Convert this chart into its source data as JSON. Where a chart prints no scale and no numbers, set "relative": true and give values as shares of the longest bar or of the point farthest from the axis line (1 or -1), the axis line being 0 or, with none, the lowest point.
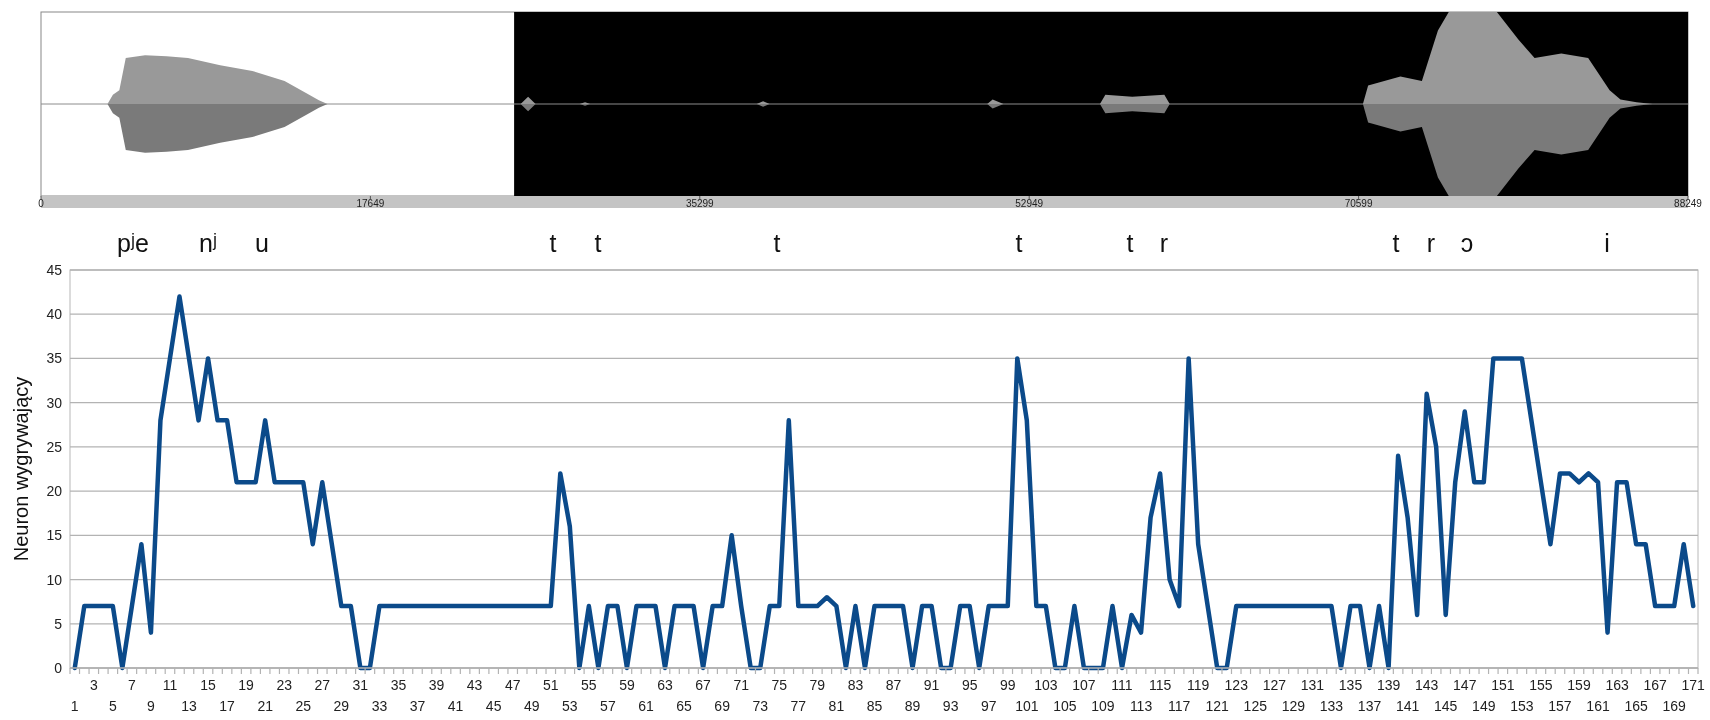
{
  "chart_data": [
    {
      "type": "area",
      "relative": true,
      "xlim": [
        0,
        88249
      ],
      "xticks": [
        0,
        17649,
        35299,
        52949,
        70599,
        88249
      ],
      "bands": [
        {
          "axis": "x",
          "from": 25350,
          "to": 88249,
          "color": "#000000"
        }
      ],
      "x": [
        0,
        3564,
        3852,
        4197,
        4542,
        5577,
        6726,
        7876,
        9601,
        11326,
        13050,
        14200,
        14890,
        15350,
        25698,
        26100,
        26500,
        28860,
        29150,
        29430,
        38350,
        38690,
        39040,
        50700,
        50990,
        51570,
        56740,
        57030,
        58470,
        60190,
        60480,
        70830,
        71110,
        72840,
        73990,
        74850,
        75430,
        78010,
        79160,
        80030,
        81460,
        82900,
        84050,
        84630,
        85490,
        86350,
        88249
      ],
      "series": [
        {
          "color": "#999999",
          "values": [
            0,
            0,
            0.1,
            0.15,
            0.5,
            0.53,
            0.52,
            0.5,
            0.42,
            0.36,
            0.25,
            0.12,
            0.04,
            0,
            0,
            0.08,
            0,
            0,
            0.02,
            0,
            0,
            0.03,
            0,
            0,
            0.05,
            0,
            0,
            0.1,
            0.08,
            0.1,
            0,
            0,
            0.2,
            0.3,
            0.25,
            0.8,
            1,
            1,
            0.7,
            0.5,
            0.55,
            0.5,
            0.15,
            0.05,
            0.02,
            0,
            0
          ]
        },
        {
          "color": "#7a7a7a",
          "values": [
            0,
            0,
            -0.1,
            -0.15,
            -0.5,
            -0.53,
            -0.52,
            -0.5,
            -0.42,
            -0.36,
            -0.25,
            -0.12,
            -0.04,
            0,
            0,
            -0.08,
            0,
            0,
            -0.02,
            0,
            0,
            -0.03,
            0,
            0,
            -0.05,
            0,
            0,
            -0.1,
            -0.08,
            -0.1,
            0,
            0,
            -0.2,
            -0.3,
            -0.25,
            -0.8,
            -1,
            -1,
            -0.7,
            -0.5,
            -0.55,
            -0.5,
            -0.15,
            -0.05,
            -0.02,
            0,
            0
          ]
        }
      ]
    },
    {
      "type": "line",
      "ylabel": "Neuron wygrywający",
      "ylim": [
        0,
        45
      ],
      "yticks": [
        0,
        5,
        10,
        15,
        20,
        25,
        30,
        35,
        40,
        45
      ],
      "grid": "y",
      "categories": [
        "1",
        null,
        "3",
        null,
        "5",
        null,
        "7",
        null,
        "9",
        null,
        "11",
        null,
        "13",
        null,
        "15",
        null,
        "17",
        null,
        "19",
        null,
        "21",
        null,
        "23",
        null,
        "25",
        null,
        "27",
        null,
        "29",
        null,
        "31",
        null,
        "33",
        null,
        "35",
        null,
        "37",
        null,
        "39",
        null,
        "41",
        null,
        "43",
        null,
        "45",
        null,
        "47",
        null,
        "49",
        null,
        "51",
        null,
        "53",
        null,
        "55",
        null,
        "57",
        null,
        "59",
        null,
        "61",
        null,
        "63",
        null,
        "65",
        null,
        "67",
        null,
        "69",
        null,
        "71",
        null,
        "73",
        null,
        "75",
        null,
        "77",
        null,
        "79",
        null,
        "81",
        null,
        "83",
        null,
        "85",
        null,
        "87",
        null,
        "89",
        null,
        "91",
        null,
        "93",
        null,
        "95",
        null,
        "97",
        null,
        "99",
        null,
        "101",
        null,
        "103",
        null,
        "105",
        null,
        "107",
        null,
        "109",
        null,
        "111",
        null,
        "113",
        null,
        "115",
        null,
        "117",
        null,
        "119",
        null,
        "121",
        null,
        "123",
        null,
        "125",
        null,
        "127",
        null,
        "129",
        null,
        "131",
        null,
        "133",
        null,
        "135",
        null,
        "137",
        null,
        "139",
        null,
        "141",
        null,
        "143",
        null,
        "145",
        null,
        "147",
        null,
        "149",
        null,
        "151",
        null,
        "153",
        null,
        "155",
        null,
        "157",
        null,
        "159",
        null,
        "161",
        null,
        "163",
        null,
        "165",
        null,
        "167",
        null,
        "169",
        null,
        "171"
      ],
      "series": [
        {
          "color": "#0b4a8a",
          "values": [
            0,
            7,
            7,
            7,
            7,
            0,
            7,
            14,
            4,
            28,
            35,
            42,
            35,
            28,
            35,
            28,
            28,
            21,
            21,
            21,
            28,
            21,
            21,
            21,
            21,
            14,
            21,
            14,
            7,
            7,
            0,
            0,
            7,
            7,
            7,
            7,
            7,
            7,
            7,
            7,
            7,
            7,
            7,
            7,
            7,
            7,
            7,
            7,
            7,
            7,
            7,
            22,
            16,
            0,
            7,
            0,
            7,
            7,
            0,
            7,
            7,
            7,
            0,
            7,
            7,
            7,
            0,
            7,
            7,
            15,
            7,
            0,
            0,
            7,
            7,
            28,
            7,
            7,
            7,
            8,
            7,
            0,
            7,
            0,
            7,
            7,
            7,
            7,
            0,
            7,
            7,
            0,
            0,
            7,
            7,
            0,
            7,
            7,
            7,
            35,
            28,
            7,
            7,
            0,
            0,
            7,
            0,
            0,
            0,
            7,
            0,
            6,
            4,
            17,
            22,
            10,
            7,
            35,
            14,
            7,
            0,
            0,
            7,
            7,
            7,
            7,
            7,
            7,
            7,
            7,
            7,
            7,
            7,
            0,
            7,
            7,
            0,
            7,
            0,
            24,
            17,
            6,
            31,
            25,
            6,
            21,
            29,
            21,
            21,
            35,
            35,
            35,
            35,
            28,
            21,
            14,
            22,
            22,
            21,
            22,
            21,
            4,
            21,
            21,
            14,
            14,
            7,
            7,
            7,
            14,
            7
          ]
        }
      ],
      "annotations": [
        "pʲe",
        "nʲ",
        "u",
        "t",
        "t",
        "t",
        "t",
        "t",
        "r",
        "t",
        "r",
        "ɔ",
        "i"
      ]
    }
  ]
}
